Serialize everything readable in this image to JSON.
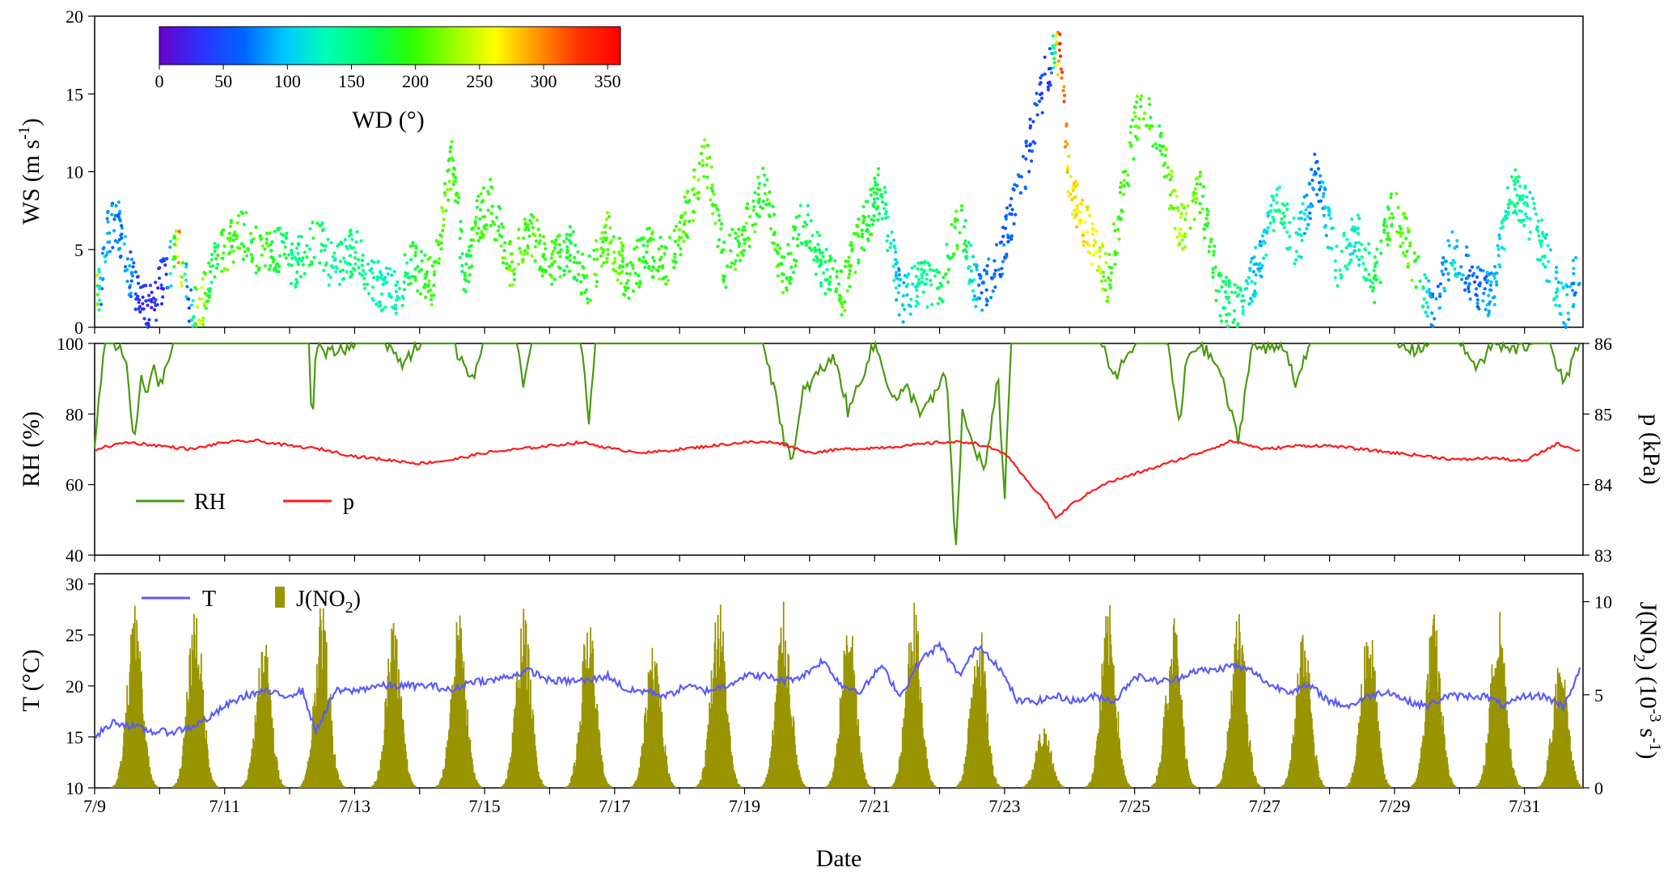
{
  "chart_data": [
    {
      "type": "scatter",
      "panel": "wind",
      "ylabel": "WS (m s",
      "ylabel_sup": "-1",
      "ylabel_close": ")",
      "ylim": [
        0,
        20
      ],
      "yticks": [
        "0",
        "5",
        "10",
        "15",
        "20"
      ],
      "color_by": "wind direction",
      "colorbar": {
        "label": "WD (°)",
        "range": [
          0,
          360
        ],
        "ticks": [
          "0",
          "50",
          "100",
          "150",
          "200",
          "250",
          "300",
          "350"
        ],
        "colors": [
          "#6a00c8",
          "#2a32ff",
          "#0064ff",
          "#00c8ff",
          "#00ffb4",
          "#00ff64",
          "#2aff00",
          "#96ff00",
          "#ffff00",
          "#ff9600",
          "#ff3200",
          "#ff0000"
        ]
      },
      "series": [
        {
          "x": [
            9.0,
            9.1,
            9.2,
            9.35,
            9.5,
            9.65,
            9.8,
            9.95,
            10.1,
            10.3,
            10.45,
            10.6,
            10.8,
            11.0,
            11.3,
            11.6,
            11.8,
            12.1,
            12.4,
            12.7,
            13.0,
            13.3,
            13.6,
            13.9,
            14.2,
            14.5,
            14.7,
            14.9,
            15.1,
            15.4,
            15.7,
            16.0,
            16.3,
            16.6,
            16.9,
            17.2,
            17.5,
            17.8,
            18.1,
            18.4,
            18.7,
            19.0,
            19.3,
            19.6,
            19.9,
            20.2,
            20.5,
            20.8,
            21.1,
            21.4,
            21.7,
            22.0,
            22.3,
            22.6,
            22.9,
            23.1,
            23.3,
            23.5,
            23.7,
            23.85,
            24.0,
            24.2,
            24.4,
            24.6,
            24.8,
            25.1,
            25.4,
            25.7,
            26.0,
            26.3,
            26.6,
            26.9,
            27.2,
            27.5,
            27.8,
            28.1,
            28.4,
            28.7,
            29.0,
            29.3,
            29.6,
            29.9,
            30.2,
            30.5,
            30.8,
            31.1,
            31.4,
            31.6,
            31.85
          ],
          "y": [
            1.5,
            3,
            6,
            7,
            4,
            2,
            1,
            2,
            3.5,
            5,
            2,
            0.5,
            4,
            5,
            6,
            4.5,
            5,
            4,
            6,
            3.5,
            5,
            3,
            2,
            4,
            3,
            11,
            3,
            7,
            8,
            4,
            6,
            4,
            5,
            3,
            6,
            3,
            5,
            4,
            7,
            11,
            4,
            6,
            9,
            3,
            7,
            4,
            2,
            6,
            9,
            1.5,
            3,
            2,
            7,
            2,
            4,
            7,
            10,
            14,
            17,
            18,
            9,
            7,
            5,
            3,
            8,
            15,
            12,
            6,
            9,
            2,
            1,
            4,
            8,
            5,
            10,
            4,
            6,
            3,
            8,
            4,
            1,
            5,
            3,
            2,
            9,
            7,
            4,
            1,
            4
          ],
          "wd": [
            300,
            80,
            90,
            70,
            90,
            40,
            30,
            40,
            20,
            300,
            30,
            260,
            160,
            200,
            190,
            200,
            180,
            150,
            170,
            140,
            160,
            140,
            120,
            180,
            200,
            210,
            170,
            200,
            190,
            210,
            200,
            200,
            180,
            190,
            210,
            200,
            190,
            200,
            200,
            210,
            190,
            200,
            190,
            200,
            170,
            160,
            200,
            190,
            170,
            90,
            150,
            160,
            200,
            80,
            60,
            70,
            60,
            50,
            40,
            340,
            260,
            270,
            250,
            210,
            200,
            200,
            190,
            230,
            200,
            170,
            150,
            90,
            150,
            130,
            60,
            150,
            120,
            170,
            200,
            210,
            70,
            110,
            60,
            90,
            150,
            130,
            120,
            100,
            70
          ]
        }
      ]
    },
    {
      "type": "line",
      "panel": "humidity-pressure",
      "ylabel": "RH (%)",
      "ylim": [
        40,
        100
      ],
      "yticks": [
        "40",
        "60",
        "80",
        "100"
      ],
      "y2label": "p (kPa)",
      "y2lim": [
        83,
        86
      ],
      "y2ticks": [
        "83",
        "84",
        "85",
        "86"
      ],
      "legend": "bottom-left",
      "series": [
        {
          "name": "RH",
          "color": "#4a9a10",
          "axis": "left",
          "x": [
            9.0,
            9.15,
            9.3,
            9.5,
            9.6,
            9.7,
            9.8,
            9.9,
            10.0,
            10.2,
            10.4,
            10.7,
            11.0,
            11.5,
            12.0,
            12.3,
            12.35,
            12.4,
            12.6,
            13.0,
            13.5,
            13.7,
            14.0,
            14.5,
            14.8,
            15.0,
            15.5,
            15.6,
            15.7,
            16.0,
            16.5,
            16.6,
            16.7,
            17.0,
            18.0,
            18.5,
            19.0,
            19.3,
            19.6,
            19.75,
            19.9,
            20.2,
            20.4,
            20.6,
            20.7,
            21.0,
            21.3,
            21.5,
            21.7,
            21.9,
            22.1,
            22.25,
            22.35,
            22.5,
            22.7,
            22.9,
            23.0,
            23.1,
            23.3,
            24.0,
            24.5,
            24.7,
            25.0,
            25.5,
            25.7,
            25.8,
            26.0,
            26.3,
            26.6,
            26.8,
            27.0,
            27.3,
            27.5,
            27.7,
            28.0,
            28.5,
            29.0,
            29.3,
            29.5,
            30.0,
            30.3,
            30.5,
            30.8,
            31.1,
            31.4,
            31.6,
            31.85
          ],
          "y": [
            72,
            100,
            100,
            95,
            70,
            90,
            85,
            95,
            88,
            100,
            100,
            100,
            100,
            100,
            100,
            100,
            74,
            100,
            97,
            100,
            100,
            94,
            100,
            100,
            90,
            100,
            100,
            85,
            100,
            100,
            100,
            77,
            100,
            100,
            100,
            100,
            100,
            100,
            74,
            67,
            86,
            93,
            96,
            80,
            86,
            100,
            84,
            87,
            81,
            84,
            92,
            41,
            80,
            72,
            64,
            90,
            56,
            100,
            100,
            100,
            100,
            90,
            100,
            100,
            76,
            96,
            100,
            93,
            72,
            100,
            98,
            100,
            88,
            100,
            100,
            100,
            100,
            98,
            100,
            100,
            93,
            100,
            98,
            100,
            100,
            88,
            100
          ]
        },
        {
          "name": "p",
          "color": "#ff1a1a",
          "axis": "right",
          "x": [
            9.0,
            9.5,
            10.0,
            10.5,
            11.0,
            11.5,
            12.0,
            12.5,
            13.0,
            13.5,
            14.0,
            14.5,
            15.0,
            15.5,
            16.0,
            16.5,
            17.0,
            17.5,
            18.0,
            18.5,
            19.0,
            19.5,
            20.0,
            20.5,
            21.0,
            21.5,
            22.0,
            22.5,
            23.0,
            23.3,
            23.6,
            23.8,
            24.0,
            24.5,
            25.0,
            25.5,
            26.0,
            26.5,
            27.0,
            27.5,
            28.0,
            28.5,
            29.0,
            29.5,
            30.0,
            30.5,
            31.0,
            31.5,
            31.85
          ],
          "y": [
            84.5,
            84.6,
            84.55,
            84.5,
            84.6,
            84.62,
            84.55,
            84.5,
            84.4,
            84.35,
            84.3,
            84.35,
            84.45,
            84.5,
            84.55,
            84.6,
            84.5,
            84.45,
            84.5,
            84.55,
            84.6,
            84.6,
            84.45,
            84.5,
            84.52,
            84.55,
            84.6,
            84.6,
            84.45,
            84.1,
            83.8,
            83.52,
            83.7,
            84.0,
            84.15,
            84.3,
            84.45,
            84.62,
            84.5,
            84.55,
            84.55,
            84.5,
            84.45,
            84.4,
            84.35,
            84.38,
            84.33,
            84.58,
            84.48
          ]
        }
      ]
    },
    {
      "type": "bar",
      "panel": "temperature-photolysis",
      "xlabel": "Date",
      "xticks": [
        "7/9",
        "7/11",
        "7/13",
        "7/15",
        "7/17",
        "7/19",
        "7/21",
        "7/23",
        "7/25",
        "7/27",
        "7/29",
        "7/31"
      ],
      "xlim": [
        9,
        31.9
      ],
      "ylabel": "T (°C)",
      "ylim": [
        10,
        31
      ],
      "yticks": [
        "10",
        "15",
        "20",
        "25",
        "30"
      ],
      "y2label_parts": [
        "J(NO",
        "2",
        ") (10",
        "-3",
        " s",
        "-1",
        ")"
      ],
      "y2lim": [
        0,
        11.5
      ],
      "y2ticks": [
        "0",
        "5",
        "10"
      ],
      "legend": "top-left",
      "series": [
        {
          "name": "T",
          "legend_sub": "",
          "color": "#5a5aff",
          "axis": "left",
          "x": [
            9.0,
            9.3,
            9.6,
            9.9,
            10.2,
            10.5,
            10.8,
            11.0,
            11.3,
            11.6,
            11.9,
            12.2,
            12.4,
            12.7,
            13.0,
            13.3,
            13.6,
            13.9,
            14.2,
            14.5,
            14.8,
            15.1,
            15.4,
            15.7,
            16.0,
            16.3,
            16.6,
            16.9,
            17.2,
            17.5,
            17.8,
            18.1,
            18.4,
            18.7,
            19.0,
            19.3,
            19.6,
            19.9,
            20.2,
            20.5,
            20.8,
            21.1,
            21.4,
            21.7,
            22.0,
            22.3,
            22.6,
            22.9,
            23.2,
            23.5,
            23.8,
            24.1,
            24.4,
            24.7,
            25.0,
            25.3,
            25.6,
            25.9,
            26.2,
            26.5,
            26.8,
            27.1,
            27.4,
            27.7,
            28.0,
            28.3,
            28.6,
            28.9,
            29.2,
            29.5,
            29.8,
            30.1,
            30.4,
            30.7,
            31.0,
            31.3,
            31.6,
            31.85
          ],
          "y": [
            15,
            16.5,
            16,
            15.5,
            15.5,
            16,
            17,
            18,
            19,
            19.5,
            19,
            19.5,
            15.5,
            19.5,
            19.5,
            20,
            20,
            20,
            20,
            19.5,
            20.5,
            20.5,
            21,
            21.5,
            20.5,
            20.5,
            20.5,
            21,
            19.5,
            19.5,
            19,
            20,
            19.5,
            20,
            21,
            21,
            20.5,
            21,
            22.5,
            20,
            19.5,
            22,
            19,
            22.5,
            24,
            21,
            24,
            22,
            18.5,
            18.5,
            19,
            18.5,
            19,
            18.5,
            21,
            20.5,
            20.5,
            21.5,
            21.5,
            22,
            21.5,
            20,
            19.5,
            20,
            18.5,
            18,
            19,
            19.5,
            18.5,
            18,
            19,
            19,
            19,
            18,
            19,
            19,
            18,
            21.5
          ]
        },
        {
          "name": "J(NO",
          "legend_sub": "2",
          "legend_close": ")",
          "color": "#999400",
          "axis": "right",
          "peaks": [
            {
              "x": 9.62,
              "h": 9.8
            },
            {
              "x": 10.55,
              "h": 10.0
            },
            {
              "x": 11.6,
              "h": 8.3
            },
            {
              "x": 12.5,
              "h": 10.0
            },
            {
              "x": 13.6,
              "h": 9.0
            },
            {
              "x": 14.6,
              "h": 9.5
            },
            {
              "x": 15.6,
              "h": 9.7
            },
            {
              "x": 16.6,
              "h": 9.5
            },
            {
              "x": 17.6,
              "h": 8.3
            },
            {
              "x": 18.6,
              "h": 10.5
            },
            {
              "x": 19.6,
              "h": 10.0
            },
            {
              "x": 20.6,
              "h": 9.5
            },
            {
              "x": 21.6,
              "h": 10.3
            },
            {
              "x": 22.6,
              "h": 9.3
            },
            {
              "x": 23.6,
              "h": 3.5
            },
            {
              "x": 24.6,
              "h": 10.0
            },
            {
              "x": 25.6,
              "h": 9.5
            },
            {
              "x": 26.6,
              "h": 9.5
            },
            {
              "x": 27.6,
              "h": 8.5
            },
            {
              "x": 28.6,
              "h": 9.5
            },
            {
              "x": 29.6,
              "h": 9.5
            },
            {
              "x": 30.6,
              "h": 10.2
            },
            {
              "x": 31.55,
              "h": 7.3
            }
          ]
        }
      ]
    }
  ]
}
